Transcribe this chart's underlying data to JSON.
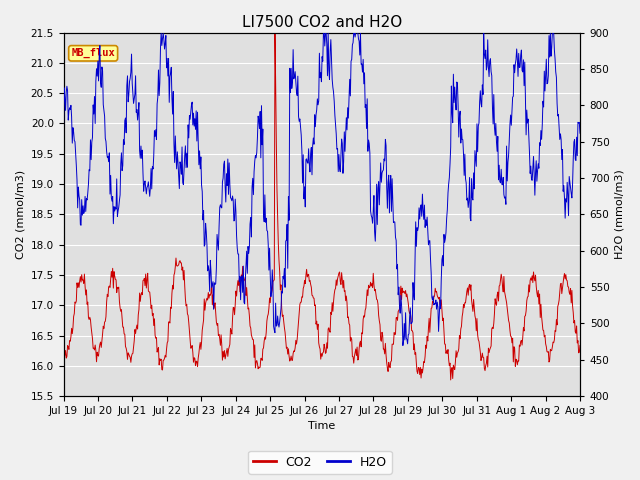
{
  "title": "LI7500 CO2 and H2O",
  "xlabel": "Time",
  "ylabel_left": "CO2 (mmol/m3)",
  "ylabel_right": "H2O (mmol/m3)",
  "ylim_left": [
    15.5,
    21.5
  ],
  "ylim_right": [
    400,
    900
  ],
  "yticks_left": [
    15.5,
    16.0,
    16.5,
    17.0,
    17.5,
    18.0,
    18.5,
    19.0,
    19.5,
    20.0,
    20.5,
    21.0,
    21.5
  ],
  "yticks_right": [
    400,
    450,
    500,
    550,
    600,
    650,
    700,
    750,
    800,
    850,
    900
  ],
  "xtick_labels": [
    "Jul 19",
    "Jul 20",
    "Jul 21",
    "Jul 22",
    "Jul 23",
    "Jul 24",
    "Jul 25",
    "Jul 26",
    "Jul 27",
    "Jul 28",
    "Jul 29",
    "Jul 30",
    "Jul 31",
    "Aug 1",
    "Aug 2",
    "Aug 3"
  ],
  "co2_color": "#cc0000",
  "h2o_color": "#0000cc",
  "fig_bg_color": "#f0f0f0",
  "plot_bg_color": "#e0e0e0",
  "annotation_text": "MB_flux",
  "annotation_bg": "#ffff99",
  "annotation_border": "#cc8800",
  "annotation_text_color": "#cc0000",
  "legend_co2": "CO2",
  "legend_h2o": "H2O",
  "title_fontsize": 11,
  "axis_fontsize": 8,
  "tick_fontsize": 7.5
}
